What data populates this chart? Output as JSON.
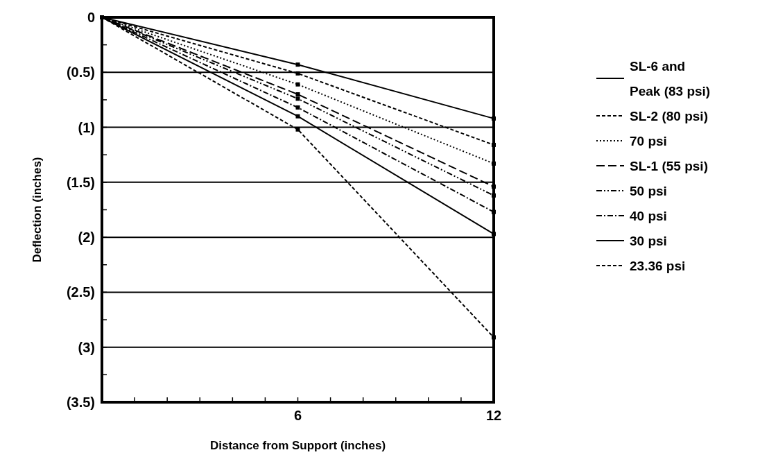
{
  "chart_data": {
    "type": "line",
    "xlabel": "Distance from Support (inches)",
    "ylabel": "Deflection (inches)",
    "x": [
      0,
      6,
      12
    ],
    "xlim": [
      0,
      12
    ],
    "xticks": [
      {
        "value": 0,
        "label": null
      },
      {
        "value": 1,
        "label": null
      },
      {
        "value": 2,
        "label": null
      },
      {
        "value": 3,
        "label": null
      },
      {
        "value": 4,
        "label": null
      },
      {
        "value": 5,
        "label": null
      },
      6,
      {
        "value": 7,
        "label": null
      },
      {
        "value": 8,
        "label": null
      },
      {
        "value": 9,
        "label": null
      },
      {
        "value": 10,
        "label": null
      },
      {
        "value": 11,
        "label": null
      },
      12
    ],
    "ylim": [
      3.5,
      0
    ],
    "yticks": [
      {
        "value": 0,
        "label": "0"
      },
      {
        "value": 0.25,
        "label": null
      },
      {
        "value": 0.5,
        "label": "(0.5)"
      },
      {
        "value": 0.75,
        "label": null
      },
      {
        "value": 1,
        "label": "(1)"
      },
      {
        "value": 1.25,
        "label": null
      },
      {
        "value": 1.5,
        "label": "(1.5)"
      },
      {
        "value": 1.75,
        "label": null
      },
      {
        "value": 2,
        "label": "(2)"
      },
      {
        "value": 2.25,
        "label": null
      },
      {
        "value": 2.5,
        "label": "(2.5)"
      },
      {
        "value": 2.75,
        "label": null
      },
      {
        "value": 3,
        "label": "(3)"
      },
      {
        "value": 3.25,
        "label": null
      },
      {
        "value": 3.5,
        "label": "(3.5)"
      }
    ],
    "grid": "y",
    "legend": "right",
    "marker": "square",
    "series": [
      {
        "name": "SL-6 and Peak (83 psi)",
        "color": "#000000",
        "line_style": "solid",
        "values": [
          0,
          0.43,
          0.92
        ]
      },
      {
        "name": "SL-2 (80 psi)",
        "color": "#000000",
        "line_style": "dashed",
        "values": [
          0,
          0.51,
          1.16
        ]
      },
      {
        "name": "70 psi",
        "color": "#000000",
        "line_style": "dotted",
        "values": [
          0,
          0.61,
          1.33
        ]
      },
      {
        "name": "SL-1 (55 psi)",
        "color": "#000000",
        "line_style": "dashed",
        "values": [
          0,
          0.7,
          1.54
        ]
      },
      {
        "name": "50 psi",
        "color": "#000000",
        "line_style": "dashed",
        "values": [
          0,
          0.74,
          1.62
        ]
      },
      {
        "name": "40 psi",
        "color": "#000000",
        "line_style": "dashed",
        "values": [
          0,
          0.82,
          1.77
        ]
      },
      {
        "name": "30 psi",
        "color": "#000000",
        "line_style": "solid",
        "values": [
          0,
          0.9,
          1.97
        ]
      },
      {
        "name": "23.36 psi",
        "color": "#000000",
        "line_style": "dashed",
        "values": [
          0,
          1.02,
          2.91
        ]
      }
    ]
  }
}
